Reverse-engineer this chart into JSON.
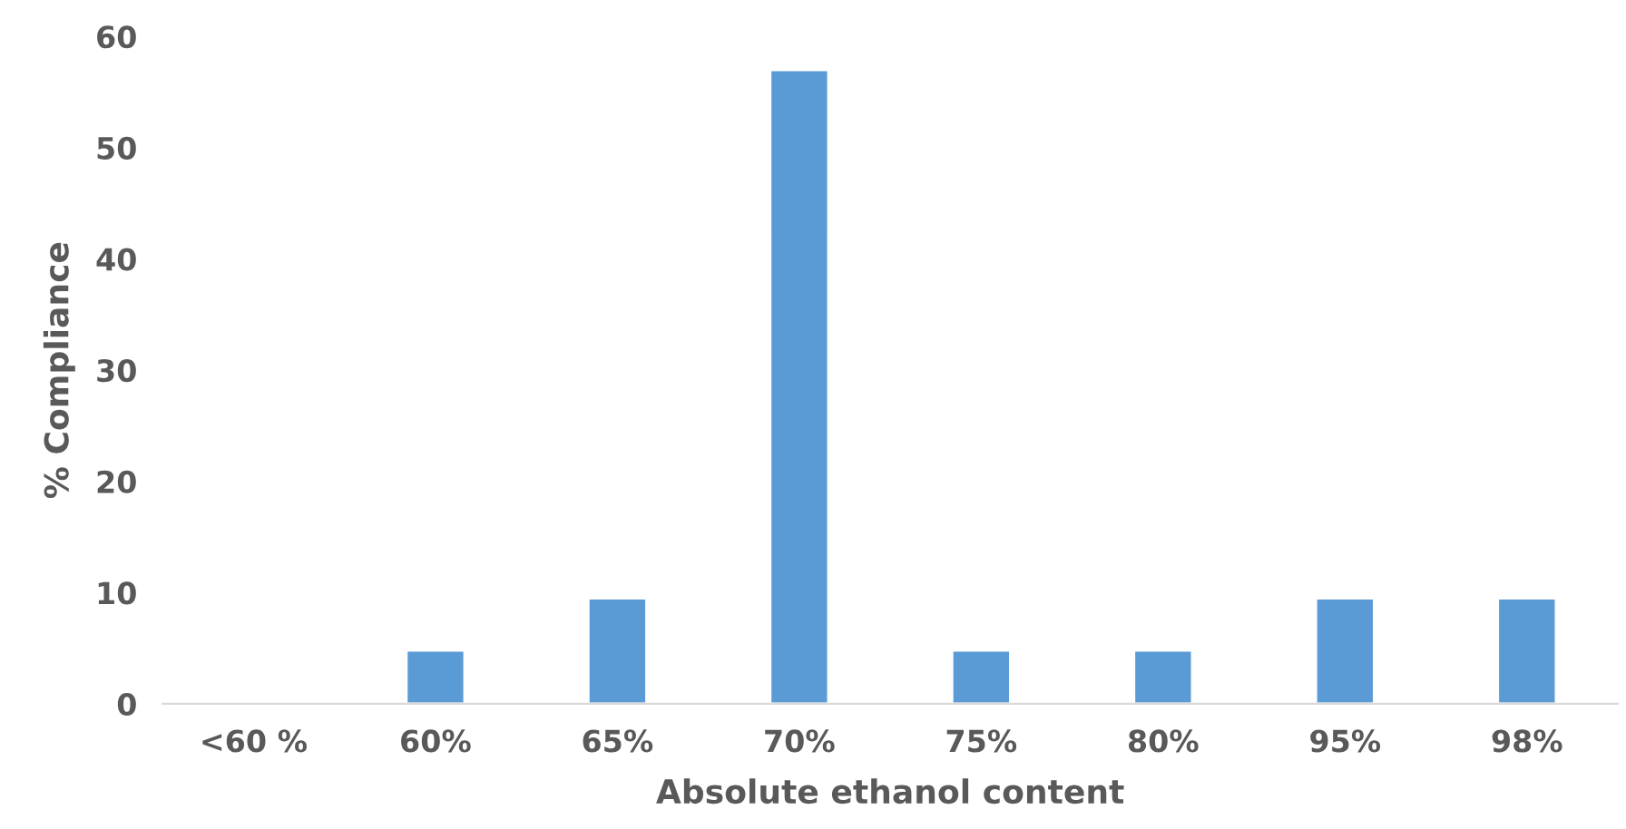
{
  "chart_data": {
    "type": "bar",
    "xlabel": "Absolute ethanol content",
    "ylabel": "% Compliance",
    "categories": [
      "<60 %",
      "60%",
      "65%",
      "70%",
      "75%",
      "80%",
      "95%",
      "98%"
    ],
    "values": [
      null,
      4.8,
      9.5,
      57,
      4.8,
      4.8,
      9.5,
      9.5
    ],
    "color": "#5b9bd5",
    "ylim": [
      0,
      60
    ],
    "yticks": [
      0,
      10,
      20,
      30,
      40,
      50,
      60
    ],
    "grid": false,
    "legend": false
  }
}
